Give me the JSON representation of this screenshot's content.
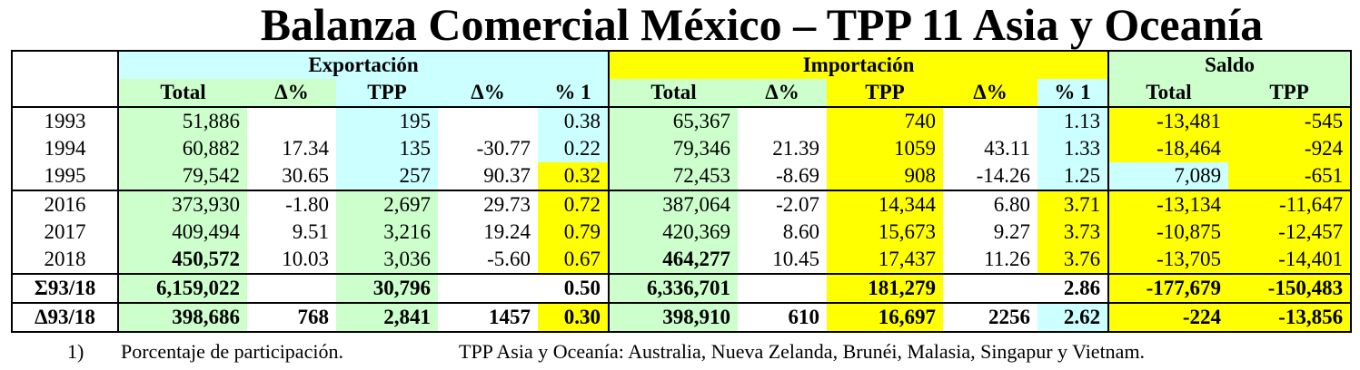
{
  "title": "Balanza Comercial México – TPP 11 Asia y Oceanía",
  "groups": {
    "exportacion": "Exportación",
    "importacion": "Importación",
    "saldo": "Saldo"
  },
  "headers": [
    "Total",
    "Δ%",
    "TPP",
    "Δ%",
    "% 1",
    "Total",
    "Δ%",
    "TPP",
    "Δ%",
    "% 1",
    "Total",
    "TPP"
  ],
  "rows": [
    [
      "1993",
      "51,886",
      "",
      "195",
      "",
      "0.38",
      "65,367",
      "",
      "740",
      "",
      "1.13",
      "-13,481",
      "-545"
    ],
    [
      "1994",
      "60,882",
      "17.34",
      "135",
      "-30.77",
      "0.22",
      "79,346",
      "21.39",
      "1059",
      "43.11",
      "1.33",
      "-18,464",
      "-924"
    ],
    [
      "1995",
      "79,542",
      "30.65",
      "257",
      "90.37",
      "0.32",
      "72,453",
      "-8.69",
      "908",
      "-14.26",
      "1.25",
      "7,089",
      "-651"
    ],
    [
      "2016",
      "373,930",
      "-1.80",
      "2,697",
      "29.73",
      "0.72",
      "387,064",
      "-2.07",
      "14,344",
      "6.80",
      "3.71",
      "-13,134",
      "-11,647"
    ],
    [
      "2017",
      "409,494",
      "9.51",
      "3,216",
      "19.24",
      "0.79",
      "420,369",
      "8.60",
      "15,673",
      "9.27",
      "3.73",
      "-10,875",
      "-12,457"
    ],
    [
      "2018",
      "450,572",
      "10.03",
      "3,036",
      "-5.60",
      "0.67",
      "464,277",
      "10.45",
      "17,437",
      "11.26",
      "3.76",
      "-13,705",
      "-14,401"
    ],
    [
      "Σ93/18",
      "6,159,022",
      "",
      "30,796",
      "",
      "0.50",
      "6,336,701",
      "",
      "181,279",
      "",
      "2.86",
      "-177,679",
      "-150,483"
    ],
    [
      "Δ93/18",
      "398,686",
      "768",
      "2,841",
      "1457",
      "0.30",
      "398,910",
      "610",
      "16,697",
      "2256",
      "2.62",
      "-224",
      "-13,856"
    ]
  ],
  "footnote": {
    "number": "1)",
    "text": "Porcentaje de participación.",
    "note": "TPP Asia y Oceanía: Australia, Nueva Zelanda, Brunéi, Malasia, Singapur y Vietnam."
  },
  "colors": {
    "green": "#ccffcc",
    "cyan": "#ccffff",
    "yellow": "#ffff00",
    "border": "#000000"
  }
}
